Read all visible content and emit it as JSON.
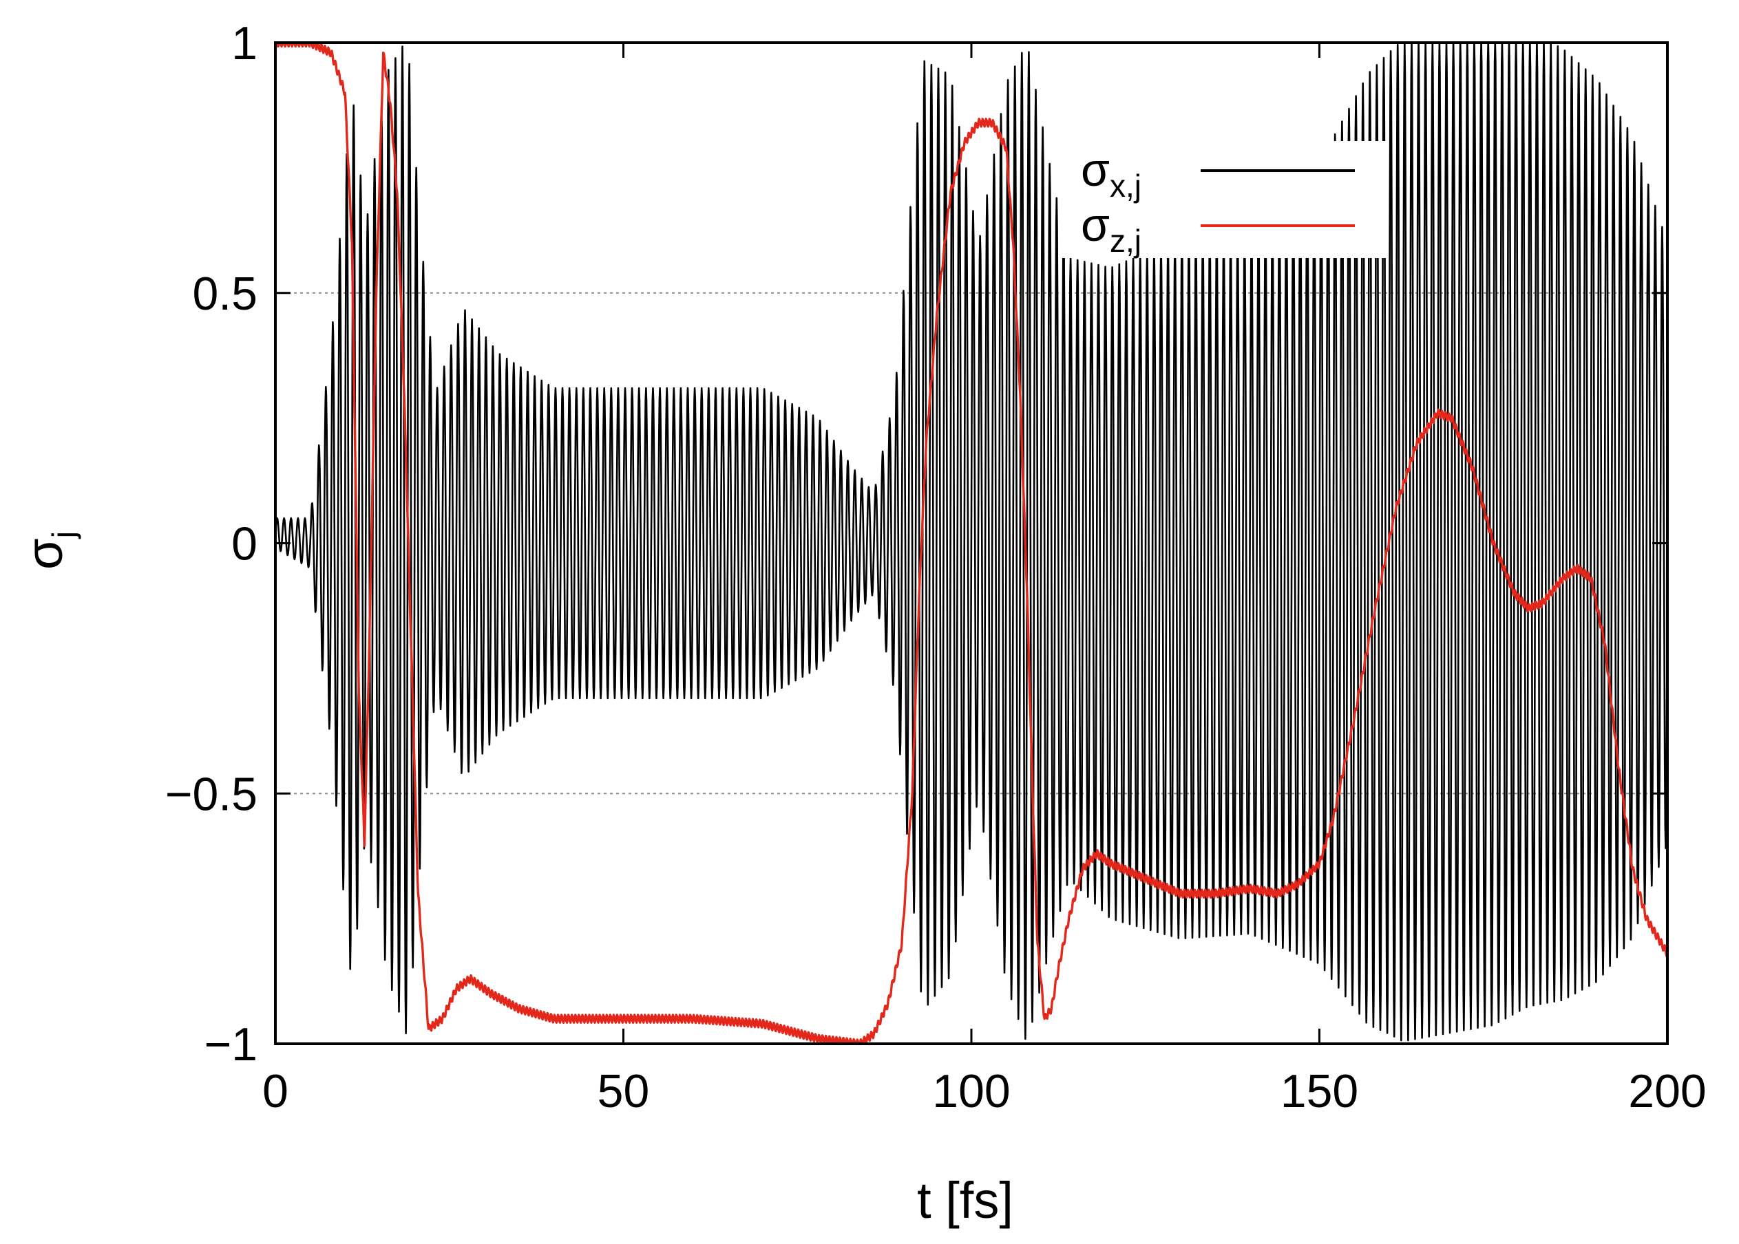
{
  "colors": {
    "sigma_x": "#000000",
    "sigma_z": "#e3271b",
    "grid": "#8a8a8a",
    "frame": "#000000",
    "background": "#ffffff"
  },
  "chart_data": {
    "type": "line",
    "xlabel": "t [fs]",
    "ylabel": "σ",
    "ylabel_sub": "j",
    "xlim": [
      0,
      200
    ],
    "ylim": [
      -1,
      1
    ],
    "x_ticks": [
      {
        "value": 0,
        "label": "0"
      },
      {
        "value": 50,
        "label": "50"
      },
      {
        "value": 100,
        "label": "100"
      },
      {
        "value": 150,
        "label": "150"
      },
      {
        "value": 200,
        "label": "200"
      }
    ],
    "y_ticks": [
      {
        "value": 1,
        "label": "1"
      },
      {
        "value": 0.5,
        "label": "0.5"
      },
      {
        "value": 0,
        "label": "0"
      },
      {
        "value": -0.5,
        "label": "−0.5"
      },
      {
        "value": -1,
        "label": "−1"
      }
    ],
    "grid_y": [
      0.5,
      -0.5
    ],
    "grid_style": "dotted horizontal",
    "legend_position": "top-right",
    "series": [
      {
        "name": "σ",
        "name_sub": "x,j",
        "color": "#000000",
        "kind": "fast-oscillation",
        "oscillation_period_fs": 1.0,
        "center": [
          [
            0,
            0.02
          ],
          [
            5,
            0.0
          ],
          [
            10,
            0.0
          ],
          [
            15,
            0.05
          ],
          [
            20,
            0.0
          ],
          [
            30,
            0.0
          ],
          [
            50,
            0.0
          ],
          [
            80,
            0.0
          ],
          [
            90,
            0.0
          ],
          [
            100,
            0.05
          ],
          [
            108,
            0.0
          ],
          [
            120,
            -0.1
          ],
          [
            140,
            -0.08
          ],
          [
            160,
            0.0
          ],
          [
            180,
            0.05
          ],
          [
            200,
            0.0
          ]
        ],
        "amplitude": [
          [
            0,
            0.03
          ],
          [
            5,
            0.05
          ],
          [
            8,
            0.4
          ],
          [
            11,
            0.9
          ],
          [
            13,
            0.6
          ],
          [
            16,
            0.9
          ],
          [
            19,
            1.0
          ],
          [
            21,
            0.6
          ],
          [
            23,
            0.3
          ],
          [
            27,
            0.47
          ],
          [
            32,
            0.38
          ],
          [
            40,
            0.31
          ],
          [
            70,
            0.31
          ],
          [
            78,
            0.25
          ],
          [
            83,
            0.15
          ],
          [
            86,
            0.1
          ],
          [
            89,
            0.3
          ],
          [
            93,
            0.95
          ],
          [
            97,
            0.9
          ],
          [
            101,
            0.55
          ],
          [
            105,
            0.9
          ],
          [
            108,
            1.0
          ],
          [
            111,
            0.8
          ],
          [
            114,
            0.62
          ],
          [
            120,
            0.65
          ],
          [
            130,
            0.7
          ],
          [
            140,
            0.7
          ],
          [
            150,
            0.8
          ],
          [
            157,
            0.95
          ],
          [
            162,
            1.0
          ],
          [
            175,
            1.0
          ],
          [
            185,
            0.95
          ],
          [
            190,
            0.9
          ],
          [
            195,
            0.8
          ],
          [
            200,
            0.6
          ]
        ]
      },
      {
        "name": "σ",
        "name_sub": "z,j",
        "color": "#e3271b",
        "kind": "smooth",
        "points": [
          [
            0,
            1.0
          ],
          [
            5,
            1.0
          ],
          [
            8,
            0.98
          ],
          [
            10,
            0.9
          ],
          [
            11,
            0.6
          ],
          [
            12,
            -0.3
          ],
          [
            12.8,
            -0.6
          ],
          [
            13.5,
            -0.2
          ],
          [
            14.5,
            0.5
          ],
          [
            15.5,
            0.98
          ],
          [
            16.5,
            0.88
          ],
          [
            17.5,
            0.7
          ],
          [
            18.5,
            0.3
          ],
          [
            19.5,
            -0.2
          ],
          [
            20.5,
            -0.7
          ],
          [
            22,
            -0.97
          ],
          [
            24,
            -0.95
          ],
          [
            26,
            -0.89
          ],
          [
            28,
            -0.87
          ],
          [
            31,
            -0.9
          ],
          [
            35,
            -0.93
          ],
          [
            40,
            -0.95
          ],
          [
            50,
            -0.95
          ],
          [
            60,
            -0.95
          ],
          [
            70,
            -0.96
          ],
          [
            78,
            -0.99
          ],
          [
            84,
            -1.0
          ],
          [
            86,
            -0.98
          ],
          [
            88,
            -0.92
          ],
          [
            90,
            -0.8
          ],
          [
            91.5,
            -0.5
          ],
          [
            92.5,
            -0.1
          ],
          [
            93.5,
            0.2
          ],
          [
            95,
            0.45
          ],
          [
            97,
            0.7
          ],
          [
            99,
            0.8
          ],
          [
            101,
            0.84
          ],
          [
            103,
            0.84
          ],
          [
            105,
            0.79
          ],
          [
            106,
            0.6
          ],
          [
            107,
            0.3
          ],
          [
            108,
            -0.1
          ],
          [
            108.8,
            -0.5
          ],
          [
            109.5,
            -0.8
          ],
          [
            110.5,
            -0.95
          ],
          [
            111.5,
            -0.93
          ],
          [
            112.5,
            -0.85
          ],
          [
            114,
            -0.75
          ],
          [
            116,
            -0.65
          ],
          [
            118,
            -0.62
          ],
          [
            120,
            -0.64
          ],
          [
            125,
            -0.67
          ],
          [
            130,
            -0.7
          ],
          [
            135,
            -0.7
          ],
          [
            140,
            -0.69
          ],
          [
            144,
            -0.7
          ],
          [
            147,
            -0.68
          ],
          [
            150,
            -0.64
          ],
          [
            152,
            -0.55
          ],
          [
            155,
            -0.35
          ],
          [
            158,
            -0.13
          ],
          [
            161,
            0.07
          ],
          [
            164,
            0.2
          ],
          [
            167,
            0.26
          ],
          [
            169,
            0.25
          ],
          [
            172,
            0.15
          ],
          [
            175,
            0.0
          ],
          [
            178,
            -0.1
          ],
          [
            180,
            -0.13
          ],
          [
            182,
            -0.12
          ],
          [
            185,
            -0.07
          ],
          [
            187,
            -0.05
          ],
          [
            189,
            -0.07
          ],
          [
            191,
            -0.2
          ],
          [
            193,
            -0.45
          ],
          [
            195,
            -0.65
          ],
          [
            197,
            -0.75
          ],
          [
            200,
            -0.82
          ]
        ]
      }
    ]
  }
}
